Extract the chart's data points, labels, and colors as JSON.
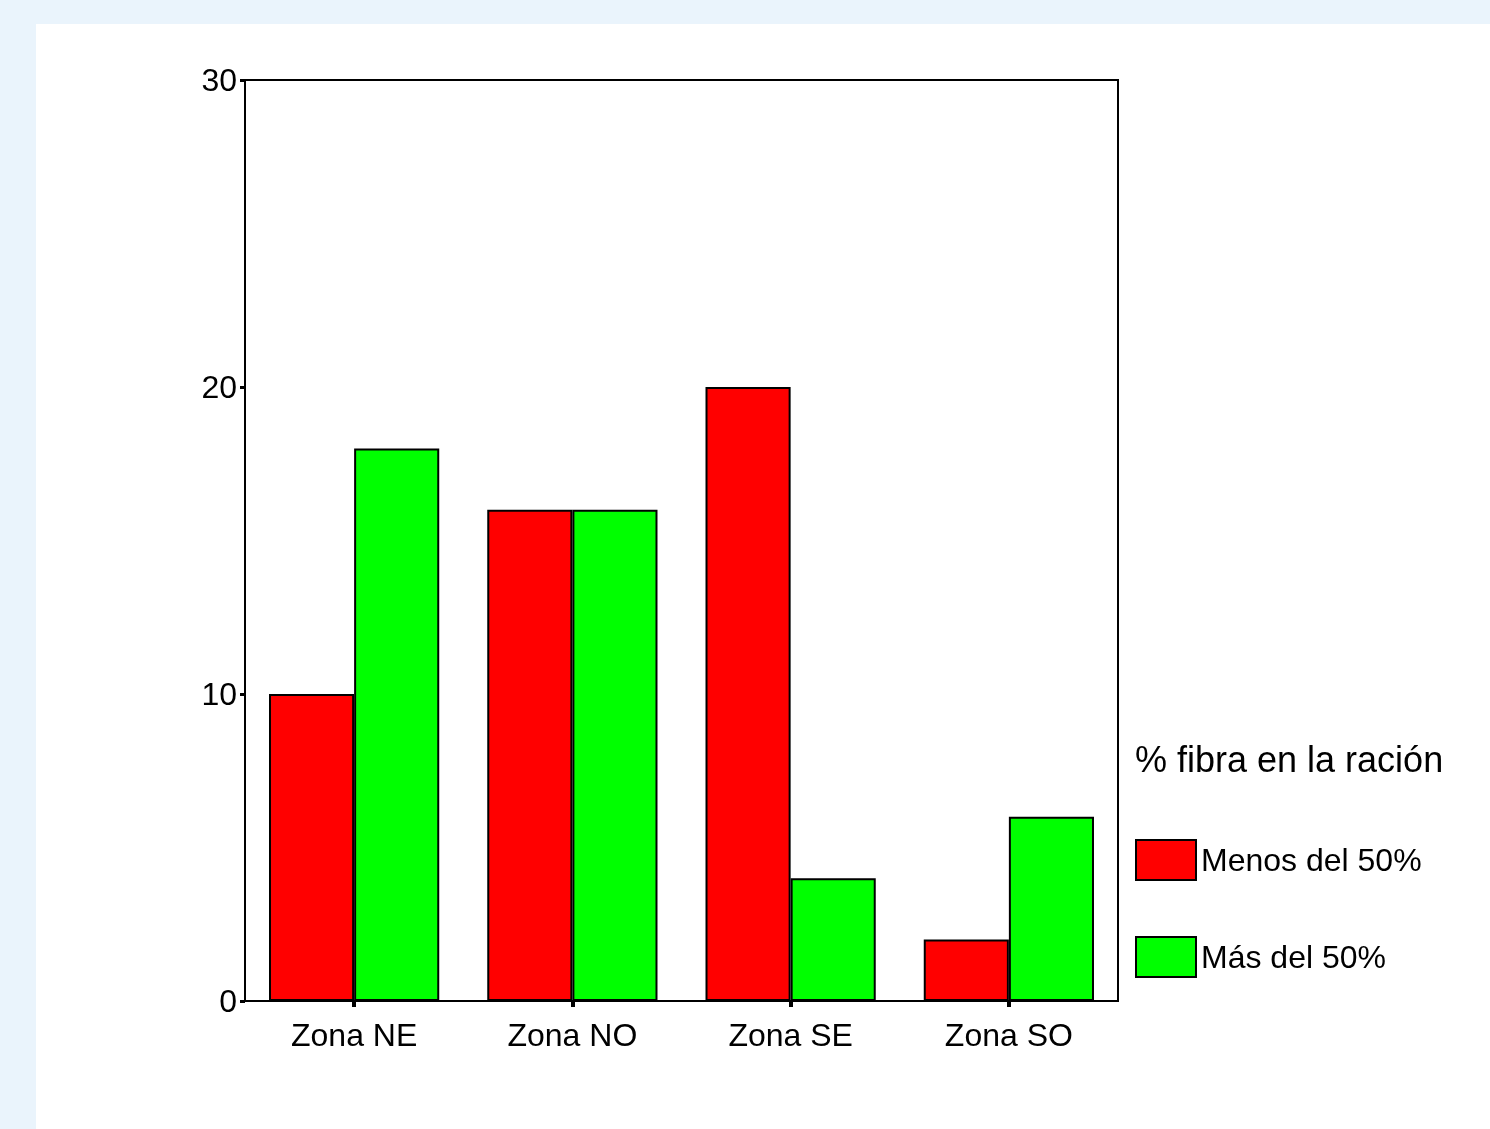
{
  "chart_data": {
    "type": "bar",
    "legend_title": "% fibra en la ración",
    "categories": [
      "Zona NE",
      "Zona NO",
      "Zona SE",
      "Zona SO"
    ],
    "series": [
      {
        "name": "Menos del 50%",
        "color": "#ff0000",
        "values": [
          10,
          16,
          20,
          2
        ]
      },
      {
        "name": "Más del 50%",
        "color": "#00ff00",
        "values": [
          18,
          16,
          4,
          6
        ]
      }
    ],
    "ylim": [
      0,
      30
    ],
    "yticks": [
      0,
      10,
      20,
      30
    ],
    "grid": false,
    "legend": "right"
  }
}
